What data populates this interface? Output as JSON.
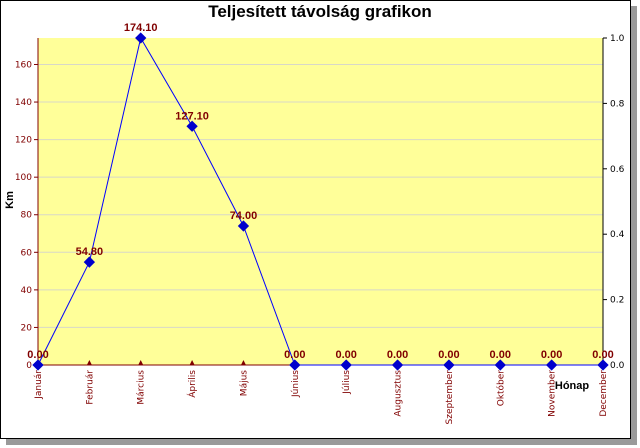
{
  "chart_data": {
    "type": "line",
    "title": "Teljesített távolság grafikon",
    "xlabel": "Hónap",
    "ylabel": "Km",
    "categories": [
      "Január",
      "Február",
      "Március",
      "Április",
      "Május",
      "Június",
      "Július",
      "Augusztus",
      "Szeptember",
      "Október",
      "November",
      "December"
    ],
    "series": [
      {
        "values": [
          0.0,
          54.8,
          174.1,
          127.1,
          74.0,
          0.0,
          0.0,
          0.0,
          0.0,
          0.0,
          0.0,
          0.0
        ]
      }
    ],
    "data_labels": [
      "0.00",
      "54.80",
      "174.10",
      "127.10",
      "74.00",
      "0.00",
      "0.00",
      "0.00",
      "0.00",
      "0.00",
      "0.00",
      "0.00"
    ],
    "ylim": [
      0,
      174.1
    ],
    "y_ticks": [
      0,
      20,
      40,
      60,
      80,
      100,
      120,
      140,
      160
    ],
    "y2lim": [
      0,
      1.0
    ],
    "y2_ticks": [
      "0.0",
      "0.2",
      "0.4",
      "0.6",
      "0.8",
      "1.0"
    ],
    "grid": "horizontal",
    "legend": "none",
    "colors": {
      "plot_background": "#ffff99",
      "line": "#0000ff",
      "marker": "#0000cc",
      "axis": "#800000",
      "label": "#800000",
      "grid": "#d8d8c8"
    }
  }
}
